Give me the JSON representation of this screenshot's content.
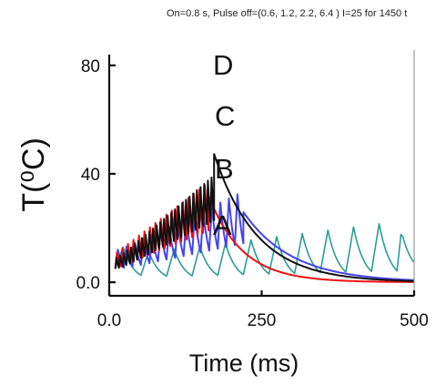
{
  "chart_data": {
    "type": "line",
    "title": "On=0.8 s, Pulse off=(0.6, 1.2, 2.2, 6.4 ) I=25 for  1450 t",
    "xlabel": "Time (ms)",
    "ylabel": "T(⁰C)",
    "xlim": [
      0,
      500
    ],
    "ylim": [
      -5,
      88
    ],
    "x_ticks": [
      {
        "value": 0,
        "label": "0.0"
      },
      {
        "value": 250,
        "label": "250"
      },
      {
        "value": 500,
        "label": "500"
      }
    ],
    "y_ticks": [
      {
        "value": 0,
        "label": "0.0"
      },
      {
        "value": 40,
        "label": "40"
      },
      {
        "value": 80,
        "label": "80"
      }
    ],
    "grid": false,
    "legend": "none",
    "series": [
      {
        "label": "A",
        "color": "#2a9d95",
        "start_x": 10,
        "start_y": 5,
        "pulse_period": 42,
        "pulse_count": 11,
        "rise": 8,
        "tau_cool": 18,
        "baseline": 0,
        "end_x": 500
      },
      {
        "label": "B",
        "color": "#4444ee",
        "start_x": 10,
        "start_y": 5,
        "pulse_period": 14,
        "pulse_count": 15,
        "rise": 7,
        "tau_cool": 12,
        "baseline": 0,
        "end_x": 500,
        "cool_from_y": 47,
        "decay_tau": 80
      },
      {
        "label": "C",
        "color": "#ee1111",
        "start_x": 10,
        "start_y": 5,
        "pulse_period": 9,
        "pulse_count": 17,
        "rise": 6,
        "tau_cool": 10,
        "baseline": 0,
        "end_x": 500,
        "cool_from_y": 58,
        "decay_tau": 55
      },
      {
        "label": "D",
        "color": "#111111",
        "start_x": 10,
        "start_y": 5,
        "pulse_period": 6,
        "pulse_count": 27,
        "rise": 4,
        "tau_cool": 8,
        "baseline": 0,
        "end_x": 500,
        "cool_from_y": 86,
        "decay_tau": 70,
        "merge_color": "#1a1a66"
      }
    ]
  }
}
